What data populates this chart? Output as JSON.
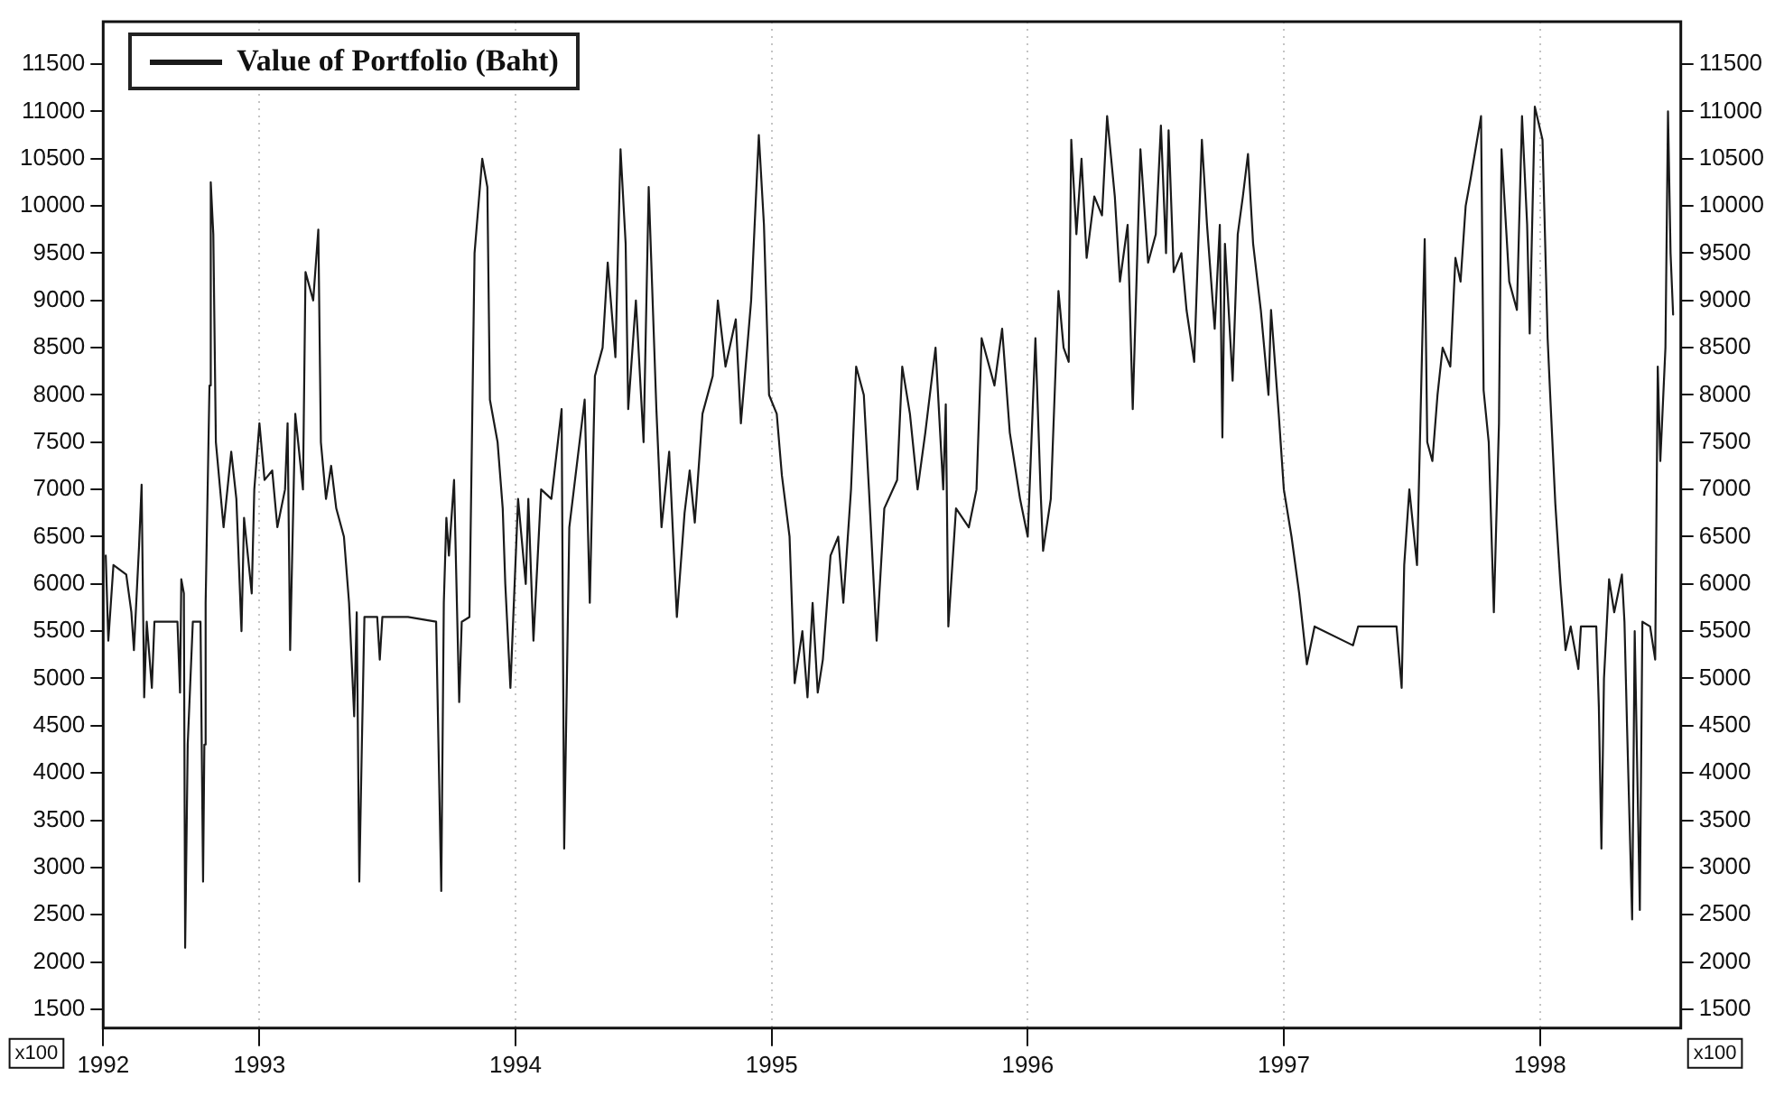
{
  "chart_data": {
    "type": "line",
    "x": [
      1992.4,
      1992.41,
      1992.43,
      1992.48,
      1992.5,
      1992.51,
      1992.53,
      1992.54,
      1992.55,
      1992.56,
      1992.58,
      1992.59,
      1992.68,
      1992.69,
      1992.695,
      1992.705,
      1992.71,
      1992.72,
      1992.74,
      1992.77,
      1992.78,
      1992.785,
      1992.79,
      1992.805,
      1992.81,
      1992.82,
      1992.83,
      1992.86,
      1992.89,
      1992.91,
      1992.92,
      1992.93,
      1992.94,
      1992.97,
      1992.98,
      1993.0,
      1993.02,
      1993.05,
      1993.07,
      1993.1,
      1993.11,
      1993.12,
      1993.14,
      1993.17,
      1993.18,
      1993.21,
      1993.23,
      1993.24,
      1993.26,
      1993.28,
      1993.3,
      1993.33,
      1993.35,
      1993.37,
      1993.38,
      1993.39,
      1993.4,
      1993.41,
      1993.46,
      1993.47,
      1993.48,
      1993.58,
      1993.69,
      1993.71,
      1993.72,
      1993.73,
      1993.74,
      1993.76,
      1993.78,
      1993.79,
      1993.82,
      1993.84,
      1993.87,
      1993.89,
      1993.9,
      1993.93,
      1993.95,
      1993.96,
      1993.98,
      1994.01,
      1994.04,
      1994.05,
      1994.07,
      1994.1,
      1994.14,
      1994.18,
      1994.19,
      1994.21,
      1994.25,
      1994.27,
      1994.29,
      1994.31,
      1994.34,
      1994.36,
      1994.39,
      1994.41,
      1994.43,
      1994.44,
      1994.47,
      1994.5,
      1994.52,
      1994.55,
      1994.57,
      1994.6,
      1994.63,
      1994.66,
      1994.68,
      1994.7,
      1994.73,
      1994.77,
      1994.79,
      1994.82,
      1994.86,
      1994.88,
      1994.92,
      1994.95,
      1994.97,
      1994.99,
      1995.02,
      1995.04,
      1995.07,
      1995.09,
      1995.12,
      1995.14,
      1995.16,
      1995.18,
      1995.2,
      1995.23,
      1995.26,
      1995.28,
      1995.31,
      1995.33,
      1995.36,
      1995.38,
      1995.41,
      1995.44,
      1995.49,
      1995.51,
      1995.54,
      1995.57,
      1995.6,
      1995.64,
      1995.67,
      1995.68,
      1995.69,
      1995.72,
      1995.77,
      1995.8,
      1995.82,
      1995.85,
      1995.87,
      1995.9,
      1995.93,
      1995.97,
      1996.0,
      1996.03,
      1996.05,
      1996.06,
      1996.09,
      1996.12,
      1996.14,
      1996.16,
      1996.17,
      1996.19,
      1996.21,
      1996.23,
      1996.26,
      1996.29,
      1996.31,
      1996.34,
      1996.36,
      1996.39,
      1996.41,
      1996.44,
      1996.47,
      1996.5,
      1996.52,
      1996.54,
      1996.55,
      1996.57,
      1996.6,
      1996.62,
      1996.65,
      1996.68,
      1996.7,
      1996.73,
      1996.75,
      1996.76,
      1996.77,
      1996.8,
      1996.82,
      1996.84,
      1996.86,
      1996.88,
      1996.91,
      1996.94,
      1996.95,
      1996.98,
      1997.0,
      1997.03,
      1997.06,
      1997.09,
      1997.12,
      1997.27,
      1997.29,
      1997.44,
      1997.46,
      1997.47,
      1997.49,
      1997.52,
      1997.55,
      1997.56,
      1997.58,
      1997.6,
      1997.62,
      1997.65,
      1997.67,
      1997.69,
      1997.71,
      1997.73,
      1997.77,
      1997.78,
      1997.8,
      1997.82,
      1997.84,
      1997.85,
      1997.88,
      1997.91,
      1997.93,
      1997.95,
      1997.96,
      1997.98,
      1998.01,
      1998.03,
      1998.04,
      1998.06,
      1998.08,
      1998.1,
      1998.12,
      1998.15,
      1998.16,
      1998.22,
      1998.23,
      1998.24,
      1998.25,
      1998.27,
      1998.29,
      1998.32,
      1998.33,
      1998.34,
      1998.36,
      1998.37,
      1998.39,
      1998.4,
      1998.43,
      1998.45,
      1998.46,
      1998.47,
      1998.49,
      1998.5,
      1998.51,
      1998.52
    ],
    "series": [
      {
        "name": "Value of Portfolio (Baht)",
        "color": "#1a1a1a",
        "values": [
          6300,
          5400,
          6200,
          6100,
          5700,
          5300,
          6400,
          7050,
          4800,
          5600,
          4900,
          5600,
          5600,
          4850,
          6050,
          5900,
          2150,
          4300,
          5600,
          5600,
          2850,
          4300,
          5800,
          8100,
          10250,
          9700,
          7500,
          6600,
          7400,
          6900,
          6200,
          5500,
          6700,
          5900,
          7000,
          7700,
          7100,
          7200,
          6600,
          7000,
          7700,
          5300,
          7800,
          7000,
          9300,
          9000,
          9750,
          7500,
          6900,
          7250,
          6800,
          6500,
          5800,
          4600,
          5700,
          2850,
          4300,
          5650,
          5650,
          5200,
          5650,
          5650,
          5600,
          2750,
          5800,
          6700,
          6300,
          7100,
          4750,
          5600,
          5650,
          9500,
          10500,
          10200,
          7950,
          7500,
          6800,
          6000,
          4900,
          6900,
          6000,
          6900,
          5400,
          7000,
          6900,
          7850,
          3200,
          6600,
          7500,
          7950,
          5800,
          8200,
          8500,
          9400,
          8400,
          10600,
          9600,
          7850,
          9000,
          7500,
          10200,
          7850,
          6600,
          7400,
          5650,
          6750,
          7200,
          6650,
          7800,
          8200,
          9000,
          8300,
          8800,
          7700,
          9000,
          10750,
          9800,
          8000,
          7800,
          7150,
          6500,
          4950,
          5500,
          4800,
          5800,
          4850,
          5200,
          6300,
          6500,
          5800,
          7000,
          8300,
          8000,
          7000,
          5400,
          6800,
          7100,
          8300,
          7800,
          7000,
          7600,
          8500,
          7000,
          7900,
          5550,
          6800,
          6600,
          7000,
          8600,
          8300,
          8100,
          8700,
          7600,
          6900,
          6500,
          8600,
          7000,
          6350,
          6900,
          9100,
          8500,
          8350,
          10700,
          9700,
          10500,
          9450,
          10100,
          9900,
          10950,
          10100,
          9200,
          9800,
          7850,
          10600,
          9400,
          9700,
          10850,
          9500,
          10800,
          9300,
          9500,
          8900,
          8350,
          10700,
          9800,
          8700,
          9800,
          7550,
          9600,
          8150,
          9700,
          10100,
          10550,
          9600,
          8900,
          8000,
          8900,
          7800,
          7000,
          6500,
          5900,
          5150,
          5550,
          5350,
          5550,
          5550,
          4900,
          6200,
          7000,
          6200,
          9650,
          7500,
          7300,
          8000,
          8500,
          8300,
          9450,
          9200,
          10000,
          10300,
          10950,
          8050,
          7500,
          5700,
          7700,
          10600,
          9200,
          8900,
          10950,
          9800,
          8650,
          11050,
          10700,
          8600,
          8000,
          6850,
          6000,
          5300,
          5550,
          5100,
          5550,
          5550,
          4700,
          3200,
          5000,
          6050,
          5700,
          6100,
          5600,
          4500,
          2450,
          5500,
          2550,
          5600,
          5550,
          5200,
          8300,
          7300,
          8500,
          11000,
          9500,
          8850
        ]
      }
    ],
    "xlim": [
      1992.39,
      1998.55
    ],
    "xticks": [
      {
        "value": 1992.39,
        "label": "1992"
      },
      1993,
      1994,
      1995,
      1996,
      1997,
      1998
    ],
    "ylim": [
      1300,
      11950
    ],
    "yticks": [
      1500,
      2000,
      2500,
      3000,
      3500,
      4000,
      4500,
      5000,
      5500,
      6000,
      6500,
      7000,
      7500,
      8000,
      8500,
      9000,
      9500,
      10000,
      10500,
      11000,
      11500
    ],
    "y2lim": [
      1300,
      11950
    ],
    "y2ticks": [
      1500,
      2000,
      2500,
      3000,
      3500,
      4000,
      4500,
      5000,
      5500,
      6000,
      6500,
      7000,
      7500,
      8000,
      8500,
      9000,
      9500,
      10000,
      10500,
      11000,
      11500
    ],
    "annotations": [
      "x100",
      "x100"
    ],
    "grid": "x",
    "legend": "top left"
  }
}
